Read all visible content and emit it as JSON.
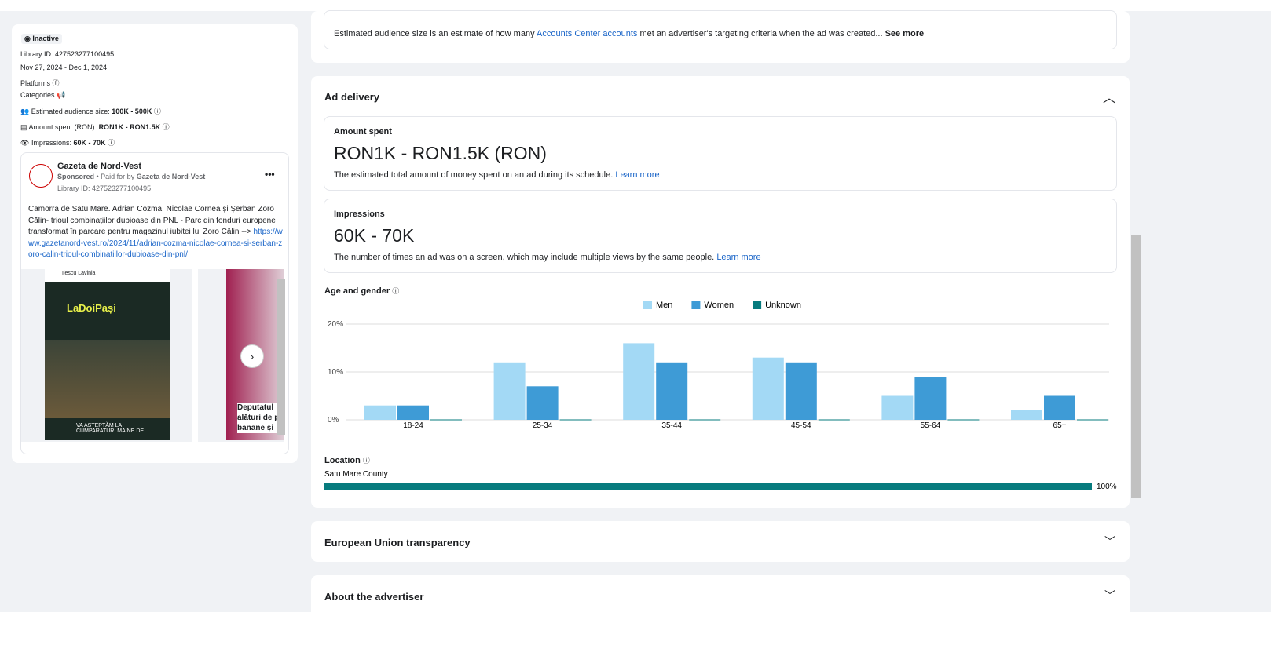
{
  "left_panel": {
    "status": "Inactive",
    "library_id": "Library ID: 427523277100495",
    "dates": "Nov 27, 2024 - Dec 1, 2024",
    "platforms": "Platforms",
    "categories": "Categories",
    "audience_label": "Estimated audience size:",
    "audience_value": "100K - 500K",
    "amount_label": "Amount spent (RON):",
    "amount_value": "RON1K - RON1.5K",
    "impressions_label": "Impressions:",
    "impressions_value": "60K - 70K",
    "ad_card": {
      "page_name": "Gazeta de Nord-Vest",
      "sponsored": "Sponsored",
      "paid_for": " • Paid for by ",
      "payer": "Gazeta de Nord-Vest",
      "library_id": "Library ID: 427523277100495",
      "body": "Camorra de Satu Mare. Adrian Cozma, Nicolae Cornea și Șerban Zoro Călin- trioul combinațiilor dubioase din PNL - Parc din fonduri europene transformat în parcare pentru magazinul iubitei lui Zoro Călin -->",
      "link": "https://www.gazetanord-vest.ro/2024/11/adrian-cozma-nicolae-cornea-si-serban-zoro-calin-trioul-combinatiilor-dubioase-din-pnl/",
      "image1_author": "Ilescu Lavinia",
      "image1_sign": "LaDoiPași",
      "image1_caption": "VA ASTEPTĂM LA CUMPARATURI MAINE DE",
      "image2_caption": "Deputatul alături de p banane și"
    }
  },
  "audience_note": {
    "text_before": "Estimated audience size is an estimate of how many ",
    "link": "Accounts Center accounts",
    "text_after": " met an advertiser's targeting criteria when the ad was created... ",
    "see_more": "See more"
  },
  "ad_delivery": {
    "title": "Ad delivery",
    "amount_spent": {
      "label": "Amount spent",
      "value": "RON1K - RON1.5K (RON)",
      "description": "The estimated total amount of money spent on an ad during its schedule. ",
      "link": "Learn more"
    },
    "impressions": {
      "label": "Impressions",
      "value": "60K - 70K",
      "description": "The number of times an ad was on a screen, which may include multiple views by the same people. ",
      "link": "Learn more"
    },
    "age_and_gender": {
      "title": "Age and gender",
      "chart": {
        "type": "bar",
        "categories": [
          "18-24",
          "25-34",
          "35-44",
          "45-54",
          "55-64",
          "65+"
        ],
        "series": [
          {
            "name": "Men",
            "color": "#a3d9f5",
            "values": [
              3,
              12,
              16,
              13,
              5,
              2
            ]
          },
          {
            "name": "Women",
            "color": "#3e9bd6",
            "values": [
              3,
              7,
              12,
              12,
              9,
              5
            ]
          },
          {
            "name": "Unknown",
            "color": "#077b7e",
            "values": [
              0,
              0,
              0,
              0,
              0,
              0
            ]
          }
        ],
        "ylim": [
          0,
          20
        ],
        "yticks": [
          {
            "value": 0,
            "label": "0%"
          },
          {
            "value": 10,
            "label": "10%"
          },
          {
            "value": 20,
            "label": "20%"
          }
        ],
        "grid": true
      }
    },
    "location": {
      "title": "Location",
      "chart": {
        "type": "bar",
        "categories": [
          "Satu Mare County"
        ],
        "values": [
          100
        ],
        "value_labels": [
          "100%"
        ],
        "color": "#077b7e",
        "xlim": [
          0,
          100
        ]
      }
    }
  },
  "sections": [
    "European Union transparency",
    "About the advertiser"
  ]
}
